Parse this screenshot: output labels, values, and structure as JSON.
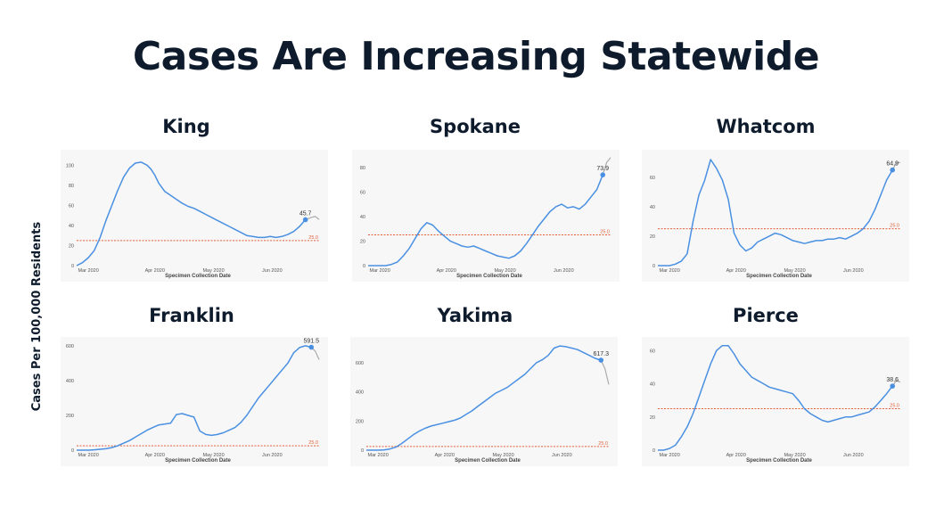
{
  "title": "Cases Are Increasing Statewide",
  "y_axis_title": "Cases Per 100,000 Residents",
  "colors": {
    "line": "#4a90e2",
    "threshold": "#e0603a",
    "projection": "#aaaaaa",
    "title": "#0e1b2c"
  },
  "chart_data": [
    {
      "type": "line",
      "title": "King",
      "xlabel": "Specimen Collection Date",
      "ylabel": "",
      "ylim": [
        0,
        110
      ],
      "yticks": [
        0,
        20,
        40,
        60,
        80,
        100
      ],
      "xticks": [
        "Mar 2020",
        "Apr 2020",
        "May 2020",
        "Jun 2020"
      ],
      "threshold": 25,
      "threshold_label": "25.0",
      "end_label": "45.7",
      "x": [
        0,
        3,
        6,
        9,
        12,
        15,
        18,
        21,
        24,
        27,
        30,
        33,
        36,
        38,
        40,
        42,
        45,
        48,
        51,
        54,
        57,
        60,
        63,
        66,
        69,
        72,
        75,
        78,
        81,
        84,
        87,
        90,
        93,
        96,
        99,
        102,
        105,
        108,
        111,
        114,
        117,
        120,
        122,
        124
      ],
      "y": [
        0,
        3,
        8,
        15,
        28,
        45,
        60,
        75,
        88,
        97,
        102,
        103,
        100,
        96,
        90,
        82,
        74,
        70,
        66,
        62,
        59,
        57,
        54,
        51,
        48,
        45,
        42,
        39,
        36,
        33,
        30,
        29,
        28,
        28,
        29,
        28,
        29,
        31,
        34,
        39,
        45.7,
        48,
        49,
        46
      ],
      "projected_from": 40
    },
    {
      "type": "line",
      "title": "Spokane",
      "xlabel": "Specimen Collection Date",
      "ylabel": "",
      "ylim": [
        0,
        90
      ],
      "yticks": [
        0,
        20,
        40,
        60,
        80
      ],
      "xticks": [
        "Mar 2020",
        "Apr 2020",
        "May 2020",
        "Jun 2020"
      ],
      "threshold": 25,
      "threshold_label": "25.0",
      "end_label": "73.9",
      "x": [
        0,
        3,
        6,
        9,
        12,
        15,
        18,
        21,
        24,
        27,
        30,
        33,
        36,
        39,
        42,
        45,
        48,
        51,
        54,
        57,
        60,
        63,
        66,
        69,
        72,
        75,
        78,
        81,
        84,
        87,
        90,
        93,
        96,
        99,
        102,
        105,
        108,
        111,
        114,
        117,
        120,
        122,
        124
      ],
      "y": [
        0,
        0,
        0,
        0,
        1,
        3,
        8,
        14,
        22,
        30,
        35,
        33,
        28,
        24,
        20,
        18,
        16,
        15,
        16,
        14,
        12,
        10,
        8,
        7,
        6,
        8,
        12,
        18,
        25,
        32,
        38,
        44,
        48,
        50,
        47,
        48,
        46,
        50,
        56,
        62,
        73.9,
        84,
        88
      ],
      "projected_from": 40
    },
    {
      "type": "line",
      "title": "Whatcom",
      "xlabel": "Specimen Collection Date",
      "ylabel": "",
      "ylim": [
        0,
        75
      ],
      "yticks": [
        0,
        20,
        40,
        60
      ],
      "xticks": [
        "Mar 2020",
        "Apr 2020",
        "May 2020",
        "Jun 2020"
      ],
      "threshold": 25,
      "threshold_label": "25.0",
      "end_label": "64.9",
      "x": [
        0,
        3,
        6,
        9,
        12,
        15,
        18,
        21,
        24,
        27,
        30,
        33,
        36,
        39,
        42,
        45,
        48,
        51,
        54,
        57,
        60,
        63,
        66,
        69,
        72,
        75,
        78,
        81,
        84,
        87,
        90,
        93,
        96,
        99,
        102,
        105,
        108,
        111,
        114,
        117,
        120,
        122,
        124
      ],
      "y": [
        0,
        0,
        0,
        1,
        3,
        8,
        30,
        48,
        58,
        72,
        66,
        58,
        45,
        22,
        14,
        10,
        12,
        16,
        18,
        20,
        22,
        21,
        19,
        17,
        16,
        15,
        16,
        17,
        17,
        18,
        18,
        19,
        18,
        20,
        22,
        25,
        30,
        38,
        48,
        58,
        64.9,
        70,
        70
      ],
      "projected_from": 40
    },
    {
      "type": "line",
      "title": "Franklin",
      "xlabel": "Specimen Collection Date",
      "ylabel": "",
      "ylim": [
        0,
        620
      ],
      "yticks": [
        0,
        200,
        400,
        600
      ],
      "xticks": [
        "Mar 2020",
        "Apr 2020",
        "May 2020",
        "Jun 2020"
      ],
      "threshold": 25,
      "threshold_label": "25.0",
      "end_label": "591.5",
      "x": [
        0,
        3,
        6,
        9,
        12,
        15,
        18,
        21,
        24,
        27,
        30,
        33,
        36,
        39,
        42,
        45,
        48,
        51,
        54,
        57,
        60,
        63,
        66,
        69,
        72,
        75,
        78,
        81,
        84,
        87,
        90,
        93,
        96,
        99,
        102,
        105,
        108,
        111,
        114,
        117,
        120,
        122,
        124
      ],
      "y": [
        0,
        0,
        0,
        2,
        5,
        8,
        15,
        25,
        40,
        55,
        75,
        95,
        115,
        130,
        145,
        150,
        155,
        205,
        210,
        200,
        190,
        110,
        90,
        85,
        90,
        100,
        115,
        130,
        160,
        200,
        250,
        300,
        340,
        380,
        420,
        460,
        500,
        560,
        590,
        600,
        591.5,
        570,
        520
      ],
      "projected_from": 40
    },
    {
      "type": "line",
      "title": "Yakima",
      "xlabel": "Specimen Collection Date",
      "ylabel": "",
      "ylim": [
        0,
        740
      ],
      "yticks": [
        0,
        200,
        400,
        600
      ],
      "xticks": [
        "Mar 2020",
        "Apr 2020",
        "May 2020",
        "Jun 2020"
      ],
      "threshold": 25,
      "threshold_label": "25.0",
      "end_label": "617.3",
      "x": [
        0,
        3,
        6,
        9,
        12,
        15,
        18,
        21,
        24,
        27,
        30,
        33,
        36,
        39,
        42,
        45,
        48,
        51,
        54,
        57,
        60,
        63,
        66,
        69,
        72,
        75,
        78,
        81,
        84,
        87,
        90,
        93,
        96,
        99,
        102,
        105,
        108,
        111,
        114,
        117,
        120,
        122,
        124
      ],
      "y": [
        0,
        0,
        0,
        2,
        8,
        20,
        45,
        75,
        105,
        130,
        150,
        165,
        175,
        185,
        195,
        205,
        220,
        245,
        270,
        300,
        330,
        360,
        390,
        410,
        430,
        460,
        490,
        520,
        560,
        600,
        620,
        650,
        700,
        715,
        710,
        700,
        690,
        670,
        650,
        630,
        617.3,
        560,
        450
      ],
      "projected_from": 40
    },
    {
      "type": "line",
      "title": "Pierce",
      "xlabel": "Specimen Collection Date",
      "ylabel": "",
      "ylim": [
        0,
        65
      ],
      "yticks": [
        0,
        20,
        40,
        60
      ],
      "xticks": [
        "Mar 2020",
        "Apr 2020",
        "May 2020",
        "Jun 2020"
      ],
      "threshold": 25,
      "threshold_label": "25.0",
      "end_label": "38.6",
      "x": [
        0,
        3,
        6,
        9,
        12,
        15,
        18,
        21,
        24,
        27,
        30,
        33,
        36,
        39,
        42,
        45,
        48,
        51,
        54,
        57,
        60,
        63,
        66,
        69,
        72,
        75,
        78,
        81,
        84,
        87,
        90,
        93,
        96,
        99,
        102,
        105,
        108,
        111,
        114,
        117,
        120,
        122,
        124
      ],
      "y": [
        0,
        0,
        1,
        3,
        8,
        14,
        22,
        32,
        42,
        52,
        60,
        63,
        63,
        58,
        52,
        48,
        44,
        42,
        40,
        38,
        37,
        36,
        35,
        34,
        30,
        25,
        22,
        20,
        18,
        17,
        18,
        19,
        20,
        20,
        21,
        22,
        23,
        26,
        30,
        34,
        38.6,
        42,
        41
      ],
      "projected_from": 40
    }
  ]
}
